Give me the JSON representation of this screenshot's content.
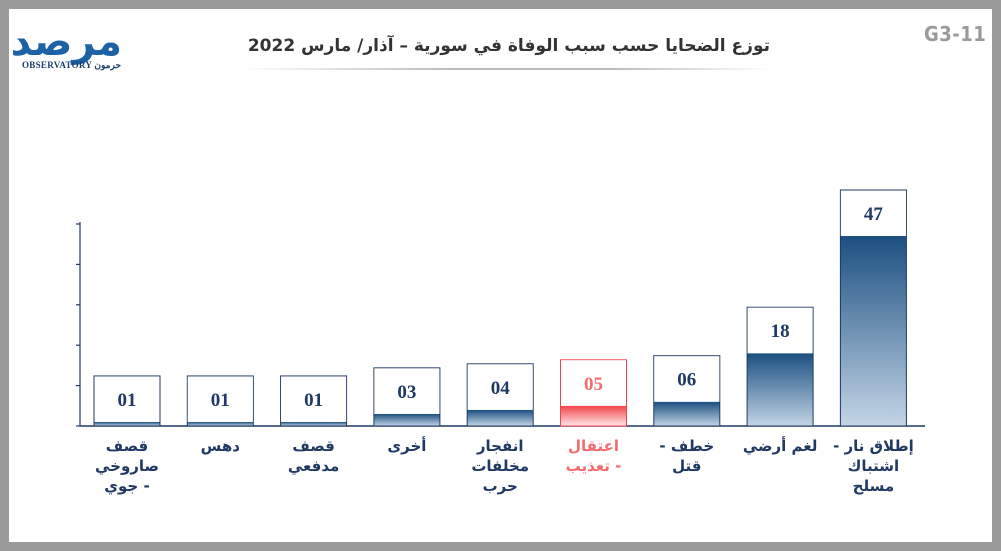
{
  "header": {
    "title": "توزع الضحايا حسب سبب الوفاة في سورية – آذار/ مارس 2022",
    "code": "G3-11",
    "logo_mark": "مرصد",
    "logo_sub": "OBSERVATORY",
    "logo_sub_ar": "حرمون"
  },
  "colors": {
    "bar_top": "#1b4f80",
    "bar_bottom": "#c3d5e6",
    "highlight_top": "#f2444b",
    "highlight_bottom": "#fde6e7",
    "label_text": "#1f3864",
    "highlight_text": "#f26b6e",
    "axis": "#1f3864"
  },
  "chart_data": {
    "type": "bar",
    "title": "توزع الضحايا حسب سبب الوفاة في سورية – آذار/ مارس 2022",
    "categories": [
      "قصف صاروخي - جوي",
      "دهس",
      "قصف مدفعي",
      "أخرى",
      "انفجار مخلفات حرب",
      "اعتقال - تعذيب",
      "خطف - قتل",
      "لغم أرضي",
      "إطلاق نار - اشتباك مسلح"
    ],
    "category_lines": [
      [
        "قصف",
        "صاروخي",
        "- جوي"
      ],
      [
        "دهس"
      ],
      [
        "قصف",
        "مدفعي"
      ],
      [
        "أخرى"
      ],
      [
        "انفجار",
        "مخلفات",
        "حرب"
      ],
      [
        "اعتقال",
        "- تعذيب"
      ],
      [
        "خطف -",
        "قتل"
      ],
      [
        "لغم أرضي"
      ],
      [
        "إطلاق نار -",
        "اشتباك",
        "مسلح"
      ]
    ],
    "values": [
      1,
      1,
      1,
      3,
      4,
      5,
      6,
      18,
      47
    ],
    "value_labels": [
      "01",
      "01",
      "01",
      "03",
      "04",
      "05",
      "06",
      "18",
      "47"
    ],
    "highlight_index": 5,
    "xlabel": "",
    "ylabel": "",
    "ylim": [
      0,
      47
    ]
  }
}
